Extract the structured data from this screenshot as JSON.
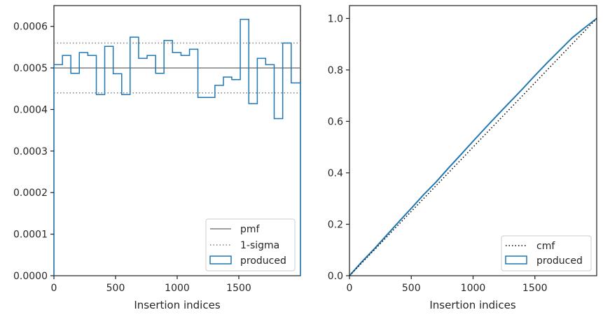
{
  "chart_data": [
    {
      "type": "step",
      "xlabel": "Insertion indices",
      "xlim": [
        0,
        2000
      ],
      "ylim": [
        0,
        0.00065
      ],
      "xticks": [
        0,
        500,
        1000,
        1500
      ],
      "xtick_labels": [
        "0",
        "500",
        "1000",
        "1500"
      ],
      "yticks": [
        0,
        0.0001,
        0.0002,
        0.0003,
        0.0004,
        0.0005,
        0.0006
      ],
      "ytick_labels": [
        "0.0000",
        "0.0001",
        "0.0002",
        "0.0003",
        "0.0004",
        "0.0005",
        "0.0006"
      ],
      "reference_lines": [
        {
          "name": "pmf",
          "y": 0.0005,
          "style": "solid",
          "color": "#7f7f7f"
        },
        {
          "name": "1-sigma",
          "y": [
            0.00044,
            0.00056
          ],
          "style": "dotted",
          "color": "#7f7f7f"
        }
      ],
      "histogram": {
        "name": "produced",
        "color": "#1f77b4",
        "bin_edges": [
          0,
          69,
          137,
          206,
          275,
          344,
          412,
          481,
          550,
          618,
          687,
          756,
          825,
          893,
          962,
          1031,
          1100,
          1168,
          1237,
          1306,
          1375,
          1443,
          1512,
          1581,
          1650,
          1718,
          1787,
          1856,
          1925,
          2000
        ],
        "values": [
          0.000508,
          0.00053,
          0.000487,
          0.000537,
          0.00053,
          0.000436,
          0.000552,
          0.000486,
          0.000436,
          0.000574,
          0.000523,
          0.00053,
          0.000487,
          0.000566,
          0.000537,
          0.00053,
          0.000545,
          0.000429,
          0.000429,
          0.000458,
          0.000478,
          0.000472,
          0.000617,
          0.000414,
          0.000523,
          0.000508,
          0.000378,
          0.00056,
          0.000464
        ]
      },
      "legend": {
        "position": "lower-right",
        "entries": [
          "pmf",
          "1-sigma",
          "produced"
        ]
      }
    },
    {
      "type": "line",
      "xlabel": "Insertion indices",
      "xlim": [
        0,
        2000
      ],
      "ylim": [
        0,
        1.05
      ],
      "xticks": [
        0,
        500,
        1000,
        1500
      ],
      "xtick_labels": [
        "0",
        "500",
        "1000",
        "1500"
      ],
      "yticks": [
        0,
        0.2,
        0.4,
        0.6,
        0.8,
        1.0
      ],
      "ytick_labels": [
        "0.0",
        "0.2",
        "0.4",
        "0.6",
        "0.8",
        "1.0"
      ],
      "series": [
        {
          "name": "cmf",
          "style": "dotted",
          "color": "#000000",
          "x": [
            0,
            2000
          ],
          "y": [
            0,
            1.0
          ]
        },
        {
          "name": "produced",
          "style": "step",
          "color": "#1f77b4",
          "x": [
            0,
            100,
            200,
            300,
            400,
            500,
            600,
            700,
            800,
            900,
            1000,
            1100,
            1200,
            1300,
            1400,
            1500,
            1600,
            1700,
            1800,
            1900,
            2000
          ],
          "y": [
            0,
            0.054,
            0.104,
            0.157,
            0.21,
            0.262,
            0.315,
            0.364,
            0.418,
            0.47,
            0.523,
            0.575,
            0.626,
            0.676,
            0.726,
            0.778,
            0.828,
            0.876,
            0.924,
            0.963,
            1.0
          ]
        }
      ],
      "legend": {
        "position": "lower-right",
        "entries": [
          "cmf",
          "produced"
        ]
      }
    }
  ]
}
